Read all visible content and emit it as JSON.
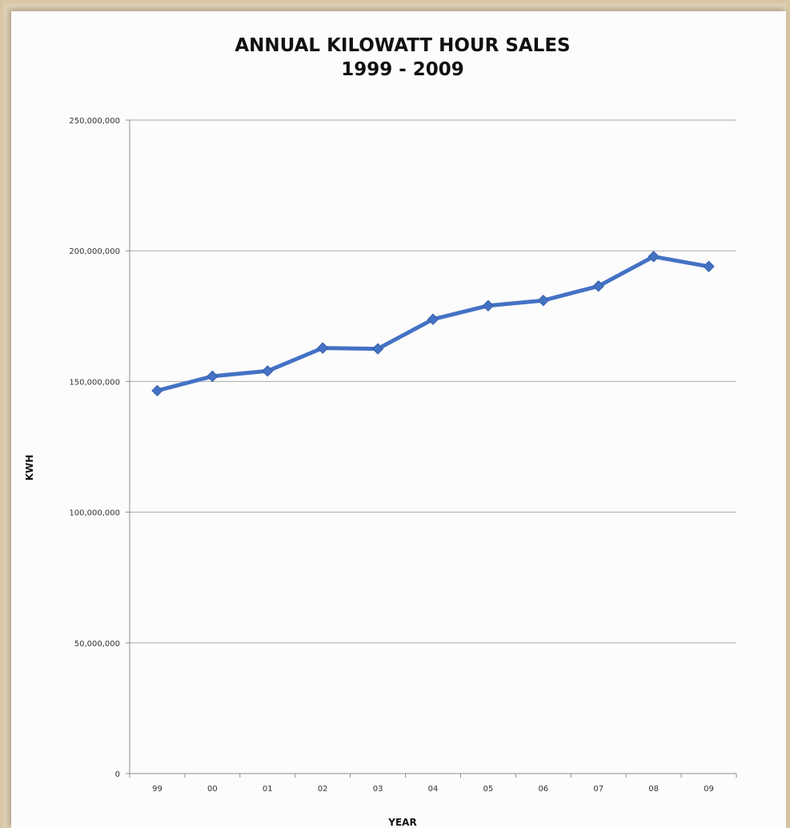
{
  "chart_data": {
    "type": "line",
    "title": "ANNUAL KILOWATT HOUR SALES",
    "subtitle": "1999 - 2009",
    "xlabel": "YEAR",
    "ylabel": "KWH",
    "categories": [
      "99",
      "00",
      "01",
      "02",
      "03",
      "04",
      "05",
      "06",
      "07",
      "08",
      "09"
    ],
    "y_tick_labels": [
      "0",
      "50,000,000",
      "100,000,000",
      "150,000,000",
      "200,000,000",
      "250,000,000"
    ],
    "y_tick_values": [
      0,
      50000000,
      100000000,
      150000000,
      200000000,
      250000000
    ],
    "ylim": [
      0,
      250000000
    ],
    "grid": true,
    "series": [
      {
        "values": [
          146500000,
          152000000,
          154000000,
          162800000,
          162500000,
          173800000,
          179000000,
          181000000,
          186500000,
          197800000,
          194000000
        ],
        "color": "#4472c4"
      }
    ]
  }
}
